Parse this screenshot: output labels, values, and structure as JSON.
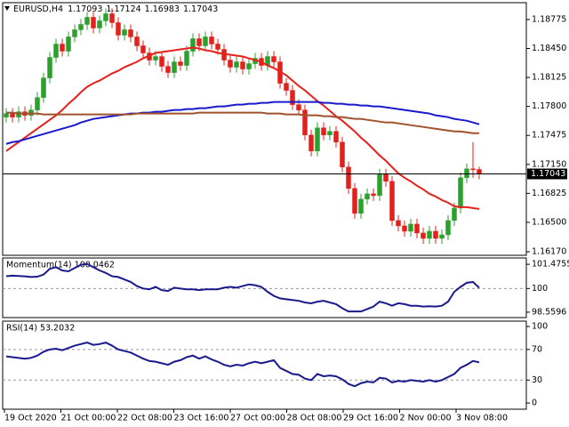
{
  "chart_data": [
    {
      "type": "candlestick",
      "title": "EURUSD,H4",
      "header_values": [
        1.17093,
        1.17124,
        1.16983,
        1.17043
      ],
      "open": [
        1.1768,
        1.1772,
        1.1768,
        1.1774,
        1.177,
        1.1776,
        1.179,
        1.1812,
        1.1835,
        1.185,
        1.1842,
        1.1858,
        1.1866,
        1.1872,
        1.188,
        1.1868,
        1.1876,
        1.1884,
        1.1874,
        1.186,
        1.1866,
        1.1858,
        1.1848,
        1.184,
        1.1832,
        1.1836,
        1.1825,
        1.1818,
        1.183,
        1.1826,
        1.1842,
        1.1856,
        1.1848,
        1.1858,
        1.185,
        1.1844,
        1.1832,
        1.1824,
        1.183,
        1.1822,
        1.1828,
        1.1834,
        1.1826,
        1.1836,
        1.183,
        1.1806,
        1.1798,
        1.1782,
        1.1776,
        1.1748,
        1.173,
        1.1756,
        1.1748,
        1.1752,
        1.174,
        1.1712,
        1.1688,
        1.166,
        1.1676,
        1.1682,
        1.168,
        1.1704,
        1.1696,
        1.1652,
        1.1646,
        1.164,
        1.1648,
        1.1638,
        1.1632,
        1.164,
        1.1632,
        1.1636,
        1.1652,
        1.1666,
        1.17,
        1.171,
        1.17093
      ],
      "high": [
        1.1778,
        1.1778,
        1.178,
        1.178,
        1.1782,
        1.1796,
        1.1818,
        1.1841,
        1.1856,
        1.1856,
        1.1864,
        1.1872,
        1.1878,
        1.1886,
        1.1886,
        1.1882,
        1.189,
        1.189,
        1.188,
        1.1872,
        1.1872,
        1.1864,
        1.1854,
        1.1846,
        1.1842,
        1.1842,
        1.1831,
        1.1836,
        1.1836,
        1.1848,
        1.1862,
        1.1862,
        1.1864,
        1.1864,
        1.1856,
        1.185,
        1.1838,
        1.1836,
        1.1836,
        1.1834,
        1.184,
        1.184,
        1.1842,
        1.1842,
        1.1836,
        1.1812,
        1.1804,
        1.1788,
        1.1782,
        1.1754,
        1.1762,
        1.1762,
        1.1758,
        1.1758,
        1.1746,
        1.1718,
        1.1694,
        1.1682,
        1.1688,
        1.1688,
        1.171,
        1.171,
        1.1702,
        1.1658,
        1.1652,
        1.1654,
        1.1654,
        1.1644,
        1.1646,
        1.1646,
        1.1642,
        1.1658,
        1.1672,
        1.1706,
        1.1716,
        1.174,
        1.17124
      ],
      "low": [
        1.1762,
        1.1762,
        1.1762,
        1.1764,
        1.1764,
        1.177,
        1.1784,
        1.1806,
        1.1829,
        1.1836,
        1.1836,
        1.1852,
        1.186,
        1.1866,
        1.1862,
        1.1862,
        1.187,
        1.1868,
        1.1854,
        1.1854,
        1.1852,
        1.1842,
        1.1834,
        1.1826,
        1.1826,
        1.1819,
        1.1812,
        1.1812,
        1.182,
        1.182,
        1.1836,
        1.1842,
        1.1842,
        1.1844,
        1.1838,
        1.1826,
        1.1818,
        1.1818,
        1.1816,
        1.1816,
        1.1822,
        1.182,
        1.182,
        1.1824,
        1.18,
        1.1792,
        1.1776,
        1.177,
        1.1742,
        1.1724,
        1.1724,
        1.1742,
        1.1742,
        1.1734,
        1.1706,
        1.1682,
        1.1654,
        1.1654,
        1.167,
        1.1674,
        1.1674,
        1.169,
        1.1646,
        1.164,
        1.1634,
        1.1634,
        1.1632,
        1.1626,
        1.1626,
        1.1626,
        1.1626,
        1.163,
        1.1646,
        1.166,
        1.1694,
        1.17,
        1.16983
      ],
      "close": [
        1.1772,
        1.1768,
        1.1774,
        1.177,
        1.1776,
        1.179,
        1.1812,
        1.1835,
        1.185,
        1.1842,
        1.1858,
        1.1866,
        1.1872,
        1.188,
        1.1868,
        1.1876,
        1.1884,
        1.1874,
        1.186,
        1.1866,
        1.1858,
        1.1848,
        1.184,
        1.1832,
        1.1836,
        1.1825,
        1.1818,
        1.183,
        1.1826,
        1.1842,
        1.1856,
        1.1848,
        1.1858,
        1.185,
        1.1844,
        1.1832,
        1.1824,
        1.183,
        1.1822,
        1.1828,
        1.1834,
        1.1826,
        1.1836,
        1.183,
        1.1806,
        1.1798,
        1.1782,
        1.1776,
        1.1748,
        1.173,
        1.1756,
        1.1748,
        1.1752,
        1.174,
        1.1712,
        1.1688,
        1.166,
        1.1676,
        1.1682,
        1.168,
        1.1704,
        1.1696,
        1.1652,
        1.1646,
        1.164,
        1.1648,
        1.1638,
        1.1632,
        1.164,
        1.1632,
        1.1636,
        1.1652,
        1.1666,
        1.17,
        1.171,
        1.17093,
        1.17043
      ],
      "up_color": "#2ca02c",
      "down_color": "#e3201b",
      "series": [
        {
          "color": "#e8201c",
          "values": [
            1.173,
            1.1735,
            1.174,
            1.1745,
            1.175,
            1.1755,
            1.176,
            1.1765,
            1.177,
            1.1776,
            1.1783,
            1.1789,
            1.1796,
            1.1802,
            1.1806,
            1.1809,
            1.1813,
            1.1817,
            1.182,
            1.1824,
            1.1827,
            1.183,
            1.1834,
            1.1837,
            1.184,
            1.1841,
            1.1842,
            1.1843,
            1.1844,
            1.1845,
            1.1846,
            1.1845,
            1.1843,
            1.1842,
            1.184,
            1.1839,
            1.1838,
            1.1837,
            1.1836,
            1.1834,
            1.1832,
            1.183,
            1.1826,
            1.1823,
            1.1819,
            1.1815,
            1.1809,
            1.1803,
            1.1798,
            1.1792,
            1.1786,
            1.1781,
            1.1775,
            1.1769,
            1.1764,
            1.1758,
            1.1752,
            1.1745,
            1.1739,
            1.1732,
            1.1725,
            1.1719,
            1.1712,
            1.1705,
            1.17,
            1.1696,
            1.1691,
            1.1687,
            1.1682,
            1.1679,
            1.1675,
            1.1672,
            1.1668,
            1.1667,
            1.1667,
            1.1666,
            1.1665
          ]
        },
        {
          "color": "#1a1acc",
          "values": [
            1.1738,
            1.174,
            1.1741,
            1.1743,
            1.1745,
            1.1747,
            1.1749,
            1.1751,
            1.1753,
            1.1755,
            1.1757,
            1.1759,
            1.1762,
            1.1764,
            1.1766,
            1.1767,
            1.1768,
            1.1769,
            1.177,
            1.1771,
            1.1772,
            1.1772,
            1.1773,
            1.1773,
            1.1774,
            1.1774,
            1.1775,
            1.1776,
            1.1776,
            1.1777,
            1.1777,
            1.1778,
            1.1778,
            1.1779,
            1.178,
            1.178,
            1.1781,
            1.1782,
            1.1782,
            1.1783,
            1.1783,
            1.1784,
            1.1784,
            1.1785,
            1.1785,
            1.1785,
            1.1785,
            1.1785,
            1.1785,
            1.1785,
            1.1785,
            1.1784,
            1.1784,
            1.1783,
            1.1783,
            1.1782,
            1.1782,
            1.1781,
            1.1781,
            1.178,
            1.178,
            1.1779,
            1.1778,
            1.1777,
            1.1776,
            1.1775,
            1.1774,
            1.1773,
            1.1772,
            1.177,
            1.1769,
            1.1768,
            1.1766,
            1.1765,
            1.1764,
            1.1762,
            1.176
          ]
        },
        {
          "color": "#a0522d",
          "values": [
            1.1773,
            1.1773,
            1.1772,
            1.1772,
            1.1772,
            1.1772,
            1.1771,
            1.1771,
            1.1771,
            1.1771,
            1.1771,
            1.1771,
            1.1771,
            1.1771,
            1.1771,
            1.1771,
            1.1771,
            1.1771,
            1.1771,
            1.1771,
            1.1771,
            1.1772,
            1.1772,
            1.1772,
            1.1772,
            1.1772,
            1.1772,
            1.1772,
            1.1772,
            1.1772,
            1.1772,
            1.1773,
            1.1773,
            1.1773,
            1.1773,
            1.1773,
            1.1773,
            1.1773,
            1.1773,
            1.1773,
            1.1773,
            1.1773,
            1.1772,
            1.1772,
            1.1772,
            1.1771,
            1.1771,
            1.1771,
            1.177,
            1.177,
            1.177,
            1.1769,
            1.1769,
            1.1768,
            1.1768,
            1.1767,
            1.1766,
            1.1766,
            1.1765,
            1.1764,
            1.1763,
            1.1762,
            1.1762,
            1.1761,
            1.176,
            1.1759,
            1.1758,
            1.1757,
            1.1756,
            1.1755,
            1.1754,
            1.1753,
            1.1752,
            1.1752,
            1.1751,
            1.175,
            1.175
          ]
        }
      ],
      "last_price": 1.17043,
      "ylim": [
        1.1613,
        1.18964
      ],
      "yticks": [
        {
          "value": 1.18775,
          "label": "1.18775"
        },
        {
          "value": 1.1845,
          "label": "1.18450"
        },
        {
          "value": 1.18125,
          "label": "1.18125"
        },
        {
          "value": 1.178,
          "label": "1.17800"
        },
        {
          "value": 1.17475,
          "label": "1.17475"
        },
        {
          "value": 1.1715,
          "label": "1.17150"
        },
        {
          "value": 1.16825,
          "label": "1.16825"
        },
        {
          "value": 1.165,
          "label": "1.16500"
        },
        {
          "value": 1.1617,
          "label": "1.16170"
        }
      ],
      "x_labels": [
        "19 Oct 2020",
        "21 Oct 00:00",
        "22 Oct 08:00",
        "23 Oct 16:00",
        "27 Oct 00:00",
        "28 Oct 08:00",
        "29 Oct 16:00",
        "2 Nov 00:00",
        "3 Nov 08:00"
      ]
    },
    {
      "type": "line",
      "title": "Momentum(14) 100.0462",
      "color": "#1a1a8c",
      "values": [
        100.75,
        100.78,
        100.76,
        100.74,
        100.7,
        100.72,
        100.85,
        101.2,
        101.3,
        101.1,
        101.05,
        101.25,
        101.45,
        101.5,
        101.3,
        101.1,
        100.95,
        100.75,
        100.7,
        100.55,
        100.4,
        100.15,
        100.0,
        99.95,
        100.1,
        99.9,
        99.85,
        100.05,
        100.0,
        99.95,
        99.95,
        99.9,
        99.95,
        99.95,
        99.95,
        100.05,
        100.1,
        100.05,
        100.15,
        100.25,
        100.2,
        100.1,
        99.8,
        99.55,
        99.4,
        99.35,
        99.3,
        99.25,
        99.15,
        99.1,
        99.2,
        99.25,
        99.15,
        99.05,
        98.8,
        98.6,
        98.6,
        98.6,
        98.75,
        98.9,
        99.2,
        99.1,
        98.95,
        99.1,
        99.05,
        98.95,
        98.95,
        98.9,
        98.92,
        98.9,
        98.95,
        99.2,
        99.8,
        100.1,
        100.35,
        100.4,
        100.0462
      ],
      "ylim": [
        98.23,
        101.86
      ],
      "yticks": [
        101.4755,
        100,
        98.5596
      ],
      "levels": [
        100
      ]
    },
    {
      "type": "line",
      "title": "RSI(14) 53.2032",
      "color": "#1a1a8c",
      "values": [
        61,
        60,
        59,
        58,
        59,
        62,
        67,
        70,
        71,
        69,
        72,
        75,
        77,
        79,
        76,
        77,
        79,
        75,
        70,
        68,
        66,
        62,
        58,
        55,
        54,
        52,
        50,
        54,
        56,
        60,
        62,
        58,
        61,
        57,
        54,
        50,
        48,
        50,
        49,
        52,
        54,
        52,
        54,
        56,
        46,
        42,
        38,
        37,
        32,
        30,
        38,
        35,
        36,
        35,
        31,
        25,
        22,
        26,
        28,
        27,
        33,
        32,
        27,
        29,
        28,
        30,
        29,
        28,
        30,
        28,
        30,
        34,
        38,
        46,
        50,
        55,
        53.2032
      ],
      "ylim": [
        -8,
        107
      ],
      "yticks": [
        100,
        70,
        30,
        0
      ],
      "levels": [
        70,
        30
      ]
    }
  ]
}
